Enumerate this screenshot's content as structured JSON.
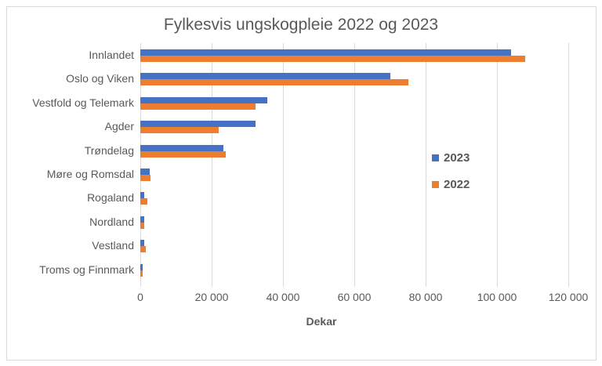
{
  "chart_data": {
    "type": "bar",
    "orientation": "horizontal",
    "title": "Fylkesvis ungskogpleie 2022 og 2023",
    "xlabel": "Dekar",
    "ylabel": "",
    "categories": [
      "Innlandet",
      "Oslo og Viken",
      "Vestfold og Telemark",
      "Agder",
      "Trøndelag",
      "Møre og Romsdal",
      "Rogaland",
      "Nordland",
      "Vestland",
      "Troms og Finnmark"
    ],
    "series": [
      {
        "name": "2023",
        "color": "#4472c4",
        "values": [
          104000,
          70000,
          35500,
          32200,
          23400,
          2600,
          1200,
          1200,
          1100,
          600
        ]
      },
      {
        "name": "2022",
        "color": "#ed7d31",
        "values": [
          108000,
          75200,
          32400,
          22000,
          24000,
          2900,
          2000,
          1000,
          1600,
          700
        ]
      }
    ],
    "xlim": [
      0,
      120000
    ],
    "x_ticks": [
      "0",
      "20 000",
      "40 000",
      "60 000",
      "80 000",
      "100 000",
      "120 000"
    ],
    "grid": true,
    "legend_position": "right"
  },
  "legend": [
    {
      "label": "2023",
      "color": "#4472c4"
    },
    {
      "label": "2022",
      "color": "#ed7d31"
    }
  ]
}
